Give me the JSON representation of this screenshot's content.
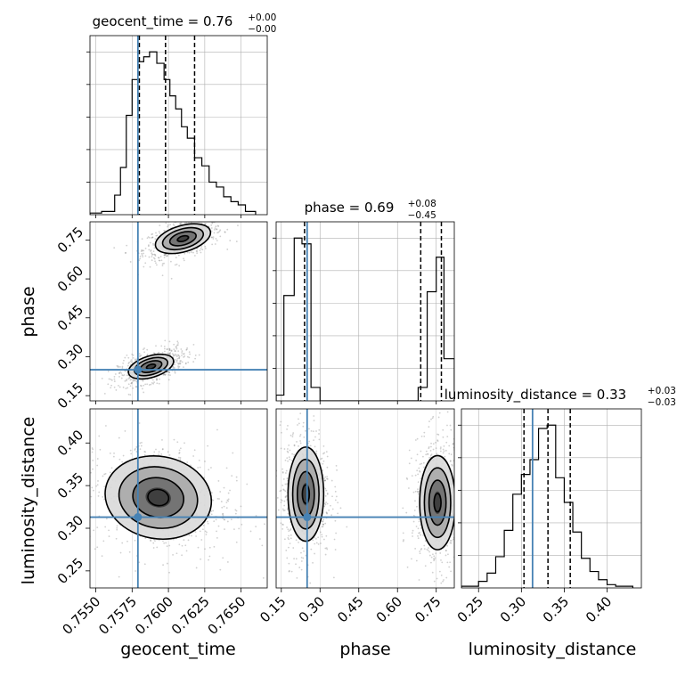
{
  "chart_data": {
    "type": "corner",
    "parameters": [
      "geocent_time",
      "phase",
      "luminosity_distance"
    ],
    "truth_color": "#4682b4",
    "truths": {
      "geocent_time": 0.7579,
      "phase": 0.25,
      "luminosity_distance": 0.313
    },
    "ranges": {
      "geocent_time": [
        0.7546,
        0.7668
      ],
      "phase": [
        0.13,
        0.82
      ],
      "luminosity_distance": [
        0.23,
        0.44
      ]
    },
    "ticks": {
      "geocent_time": [
        "0.7550",
        "0.7575",
        "0.7600",
        "0.7625",
        "0.7650"
      ],
      "phase": [
        "0.15",
        "0.30",
        "0.45",
        "0.60",
        "0.75"
      ],
      "luminosity_distance_y": [
        "0.25",
        "0.30",
        "0.35",
        "0.40"
      ],
      "luminosity_distance_x": [
        "0.25",
        "0.30",
        "0.35",
        "0.40"
      ]
    },
    "axis_labels": {
      "geocent_time": "geocent_time",
      "phase": "phase",
      "luminosity_distance": "luminosity_distance"
    },
    "marginals": [
      {
        "param": "geocent_time",
        "title": "geocent_time = 0.76",
        "title_sup": "+0.00",
        "title_sub": "−0.00",
        "quantiles": [
          0.758,
          0.7598,
          0.7618
        ],
        "bin_edges": [
          0.7546,
          0.7554,
          0.7563,
          0.7567,
          0.7571,
          0.7575,
          0.7579,
          0.7583,
          0.7587,
          0.7592,
          0.7597,
          0.7601,
          0.7605,
          0.7609,
          0.7613,
          0.7618,
          0.7623,
          0.7628,
          0.7633,
          0.7638,
          0.7643,
          0.7648,
          0.7653,
          0.766
        ],
        "counts": [
          0.01,
          0.02,
          0.12,
          0.29,
          0.61,
          0.83,
          0.94,
          0.97,
          1.0,
          0.93,
          0.83,
          0.73,
          0.65,
          0.54,
          0.47,
          0.35,
          0.3,
          0.2,
          0.17,
          0.11,
          0.08,
          0.06,
          0.02
        ]
      },
      {
        "param": "phase",
        "title": "phase = 0.69",
        "title_sup": "+0.08",
        "title_sub": "−0.45",
        "quantiles": [
          0.24,
          0.69,
          0.77
        ],
        "bin_edges": [
          0.13,
          0.16,
          0.2,
          0.23,
          0.265,
          0.3,
          0.33,
          0.68,
          0.715,
          0.75,
          0.78,
          0.82
        ],
        "counts": [
          0.03,
          0.55,
          0.85,
          0.82,
          0.07,
          0.0,
          0.0,
          0.07,
          0.57,
          0.75,
          0.22
        ]
      },
      {
        "param": "luminosity_distance",
        "title": "luminosity_distance = 0.33",
        "title_sup": "+0.03",
        "title_sub": "−0.03",
        "quantiles": [
          0.303,
          0.331,
          0.357
        ],
        "bin_edges": [
          0.23,
          0.24,
          0.25,
          0.26,
          0.27,
          0.28,
          0.29,
          0.3,
          0.31,
          0.32,
          0.33,
          0.34,
          0.35,
          0.36,
          0.37,
          0.38,
          0.39,
          0.4,
          0.41,
          0.42,
          0.43
        ],
        "counts": [
          0.01,
          0.01,
          0.04,
          0.09,
          0.19,
          0.35,
          0.57,
          0.69,
          0.78,
          0.97,
          0.99,
          0.67,
          0.52,
          0.34,
          0.18,
          0.1,
          0.05,
          0.02,
          0.01,
          0.01
        ]
      }
    ],
    "joint_2d": [
      {
        "x": "geocent_time",
        "y": "phase",
        "modes": [
          {
            "cx": 0.761,
            "cy": 0.755,
            "sx": 0.00085,
            "sy": 0.022,
            "slope": 16.0
          },
          {
            "cx": 0.7588,
            "cy": 0.262,
            "sx": 0.0007,
            "sy": 0.018,
            "slope": 17.0
          }
        ]
      },
      {
        "x": "geocent_time",
        "y": "luminosity_distance",
        "modes": [
          {
            "cx": 0.7593,
            "cy": 0.336,
            "sx": 0.0016,
            "sy": 0.021,
            "slope": -3.0
          }
        ]
      },
      {
        "x": "phase",
        "y": "luminosity_distance",
        "modes": [
          {
            "cx": 0.245,
            "cy": 0.34,
            "sx": 0.03,
            "sy": 0.024,
            "slope": 0
          },
          {
            "cx": 0.755,
            "cy": 0.33,
            "sx": 0.03,
            "sy": 0.024,
            "slope": 0
          }
        ]
      }
    ]
  }
}
